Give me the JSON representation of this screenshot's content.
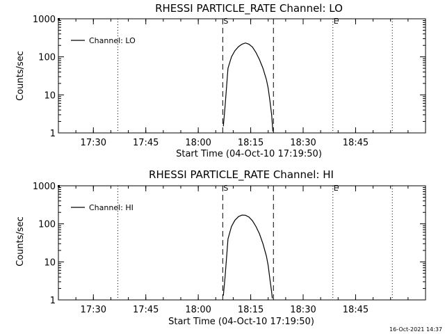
{
  "chart_data": [
    {
      "type": "line",
      "title": "RHESSI PARTICLE_RATE Channel: LO",
      "xlabel": "Start Time (04-Oct-10 17:19:50)",
      "ylabel": "Counts/sec",
      "xlim": [
        "17:20",
        "19:05"
      ],
      "ylim": [
        1,
        1000
      ],
      "yscale": "log",
      "x_ticks": [
        "17:30",
        "17:45",
        "18:00",
        "18:15",
        "18:30",
        "18:45"
      ],
      "y_ticks": [
        {
          "value": 1,
          "label": "1"
        },
        {
          "value": 10,
          "label": "10"
        },
        {
          "value": 100,
          "label": "100"
        },
        {
          "value": 1000,
          "label": "1000"
        }
      ],
      "legend": {
        "label": "Channel: LO",
        "placement": "top-left"
      },
      "series": [
        {
          "name": "Channel: LO",
          "x": [
            "18:07:10",
            "18:07:40",
            "18:08:30",
            "18:09:30",
            "18:10:30",
            "18:11:30",
            "18:12:30",
            "18:13:30",
            "18:14:30",
            "18:15:30",
            "18:16:30",
            "18:17:30",
            "18:18:30",
            "18:19:30",
            "18:20:00",
            "18:20:30",
            "18:21:00",
            "18:21:20"
          ],
          "values": [
            1.5,
            5,
            50,
            100,
            145,
            185,
            215,
            232,
            215,
            180,
            130,
            85,
            50,
            25,
            15,
            7,
            3,
            1.1
          ]
        }
      ],
      "vlines": [
        {
          "x": "17:37:00",
          "style": "dotted"
        },
        {
          "x": "18:07:00",
          "style": "dashed",
          "label": "S"
        },
        {
          "x": "18:21:30",
          "style": "dashed"
        },
        {
          "x": "18:38:30",
          "style": "dotted",
          "label": "E"
        },
        {
          "x": "18:55:30",
          "style": "dotted"
        }
      ]
    },
    {
      "type": "line",
      "title": "RHESSI PARTICLE_RATE Channel: HI",
      "xlabel": "Start Time (04-Oct-10 17:19:50)",
      "ylabel": "Counts/sec",
      "xlim": [
        "17:20",
        "19:05"
      ],
      "ylim": [
        1,
        1000
      ],
      "yscale": "log",
      "x_ticks": [
        "17:30",
        "17:45",
        "18:00",
        "18:15",
        "18:30",
        "18:45"
      ],
      "y_ticks": [
        {
          "value": 1,
          "label": "1"
        },
        {
          "value": 10,
          "label": "10"
        },
        {
          "value": 100,
          "label": "100"
        },
        {
          "value": 1000,
          "label": "1000"
        }
      ],
      "legend": {
        "label": "Channel: HI",
        "placement": "top-left"
      },
      "series": [
        {
          "name": "Channel: HI",
          "x": [
            "18:07:10",
            "18:07:40",
            "18:08:30",
            "18:09:30",
            "18:10:30",
            "18:11:30",
            "18:12:30",
            "18:13:30",
            "18:14:30",
            "18:15:30",
            "18:16:30",
            "18:17:30",
            "18:18:30",
            "18:19:30",
            "18:20:00",
            "18:20:30",
            "18:21:00",
            "18:21:10"
          ],
          "values": [
            1.3,
            4,
            40,
            85,
            125,
            155,
            170,
            168,
            150,
            120,
            85,
            55,
            30,
            14,
            8,
            3.5,
            1.6,
            1.1
          ]
        }
      ],
      "vlines": [
        {
          "x": "17:37:00",
          "style": "dotted"
        },
        {
          "x": "18:07:00",
          "style": "dashed",
          "label": "S"
        },
        {
          "x": "18:21:30",
          "style": "dashed"
        },
        {
          "x": "18:38:30",
          "style": "dotted",
          "label": "E"
        },
        {
          "x": "18:55:30",
          "style": "dotted"
        }
      ]
    }
  ],
  "footer": {
    "timestamp": "16-Oct-2021 14:37"
  }
}
